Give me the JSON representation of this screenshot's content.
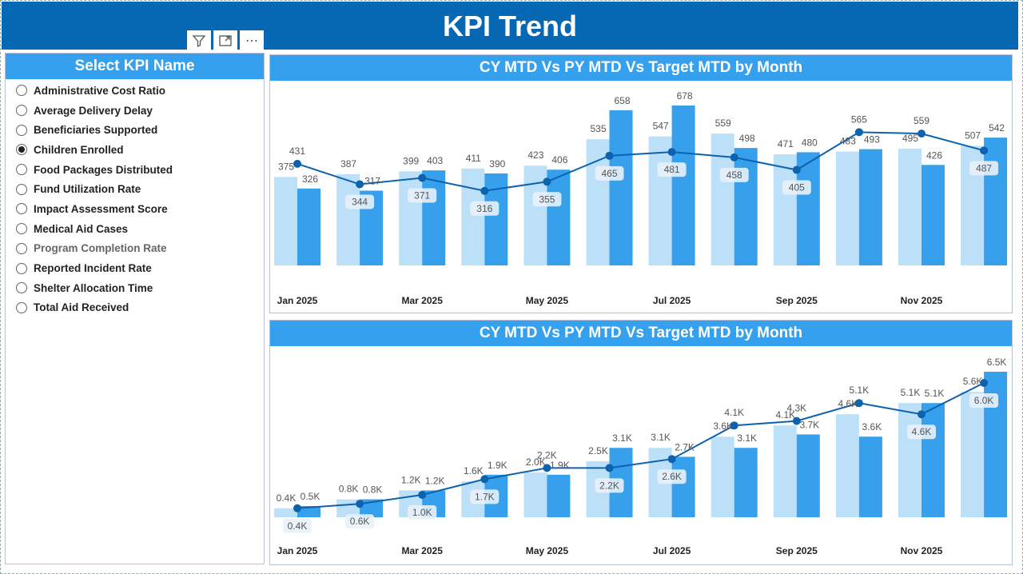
{
  "header": {
    "title": "KPI Trend"
  },
  "visual_buttons": {
    "filter_icon": "filter-icon",
    "focus_icon": "focus-mode-icon",
    "more_label": "⋯"
  },
  "slicer": {
    "title": "Select KPI Name",
    "selected": "Children Enrolled",
    "items": [
      "Administrative Cost Ratio",
      "Average Delivery Delay",
      "Beneficiaries Supported",
      "Children Enrolled",
      "Food Packages Distributed",
      "Fund Utilization Rate",
      "Impact Assessment Score",
      "Medical Aid Cases",
      "Program Completion Rate",
      "Reported Incident Rate",
      "Shelter Allocation Time",
      "Total Aid Received"
    ]
  },
  "colors": {
    "actual": "#bde0f9",
    "py": "#36a0ec",
    "target": "#0d62ad",
    "header": "#0667b3",
    "title_bar": "#35a0ee"
  },
  "chart_data": [
    {
      "type": "bar",
      "title": "CY MTD Vs PY MTD Vs Target MTD by Month",
      "categories": [
        "Jan 2025",
        "Feb 2025",
        "Mar 2025",
        "Apr 2025",
        "May 2025",
        "Jun 2025",
        "Jul 2025",
        "Aug 2025",
        "Sep 2025",
        "Oct 2025",
        "Nov 2025",
        "Dec 2025"
      ],
      "tick_labels": [
        "Jan 2025",
        "",
        "Mar 2025",
        "",
        "May 2025",
        "",
        "Jul 2025",
        "",
        "Sep 2025",
        "",
        "Nov 2025",
        ""
      ],
      "ylim": [
        0,
        678
      ],
      "label_suffix": "",
      "series": [
        {
          "name": "Actual CY MTD",
          "kind": "bar",
          "values": [
            375,
            387,
            399,
            411,
            423,
            535,
            547,
            559,
            471,
            483,
            495,
            507
          ]
        },
        {
          "name": "PY MTD",
          "kind": "bar",
          "values": [
            326,
            317,
            403,
            390,
            406,
            658,
            678,
            498,
            480,
            493,
            426,
            542
          ]
        },
        {
          "name": "Target CY MTD",
          "kind": "line",
          "values": [
            431,
            344,
            371,
            316,
            355,
            465,
            481,
            458,
            405,
            565,
            559,
            487
          ]
        }
      ]
    },
    {
      "type": "bar",
      "title": "CY MTD Vs PY MTD Vs Target MTD by Month",
      "categories": [
        "Jan 2025",
        "Feb 2025",
        "Mar 2025",
        "Apr 2025",
        "May 2025",
        "Jun 2025",
        "Jul 2025",
        "Aug 2025",
        "Sep 2025",
        "Oct 2025",
        "Nov 2025",
        "Dec 2025"
      ],
      "tick_labels": [
        "Jan 2025",
        "",
        "Mar 2025",
        "",
        "May 2025",
        "",
        "Jul 2025",
        "",
        "Sep 2025",
        "",
        "Nov 2025",
        ""
      ],
      "ylim": [
        0,
        6.5
      ],
      "label_suffix": "K",
      "series": [
        {
          "name": "Actual CY YTD",
          "kind": "bar",
          "values": [
            0.4,
            0.8,
            1.2,
            1.6,
            2.0,
            2.5,
            3.1,
            3.6,
            4.1,
            4.6,
            5.1,
            5.6
          ]
        },
        {
          "name": "PY YTD",
          "kind": "bar",
          "values": [
            0.5,
            0.8,
            1.2,
            1.9,
            1.9,
            3.1,
            2.7,
            3.1,
            3.7,
            3.6,
            5.1,
            6.5
          ]
        },
        {
          "name": "Target CY YTD",
          "kind": "line",
          "values": [
            0.4,
            0.6,
            1.0,
            1.7,
            2.2,
            2.2,
            2.6,
            4.1,
            4.3,
            5.1,
            4.6,
            6.0
          ]
        }
      ]
    }
  ]
}
